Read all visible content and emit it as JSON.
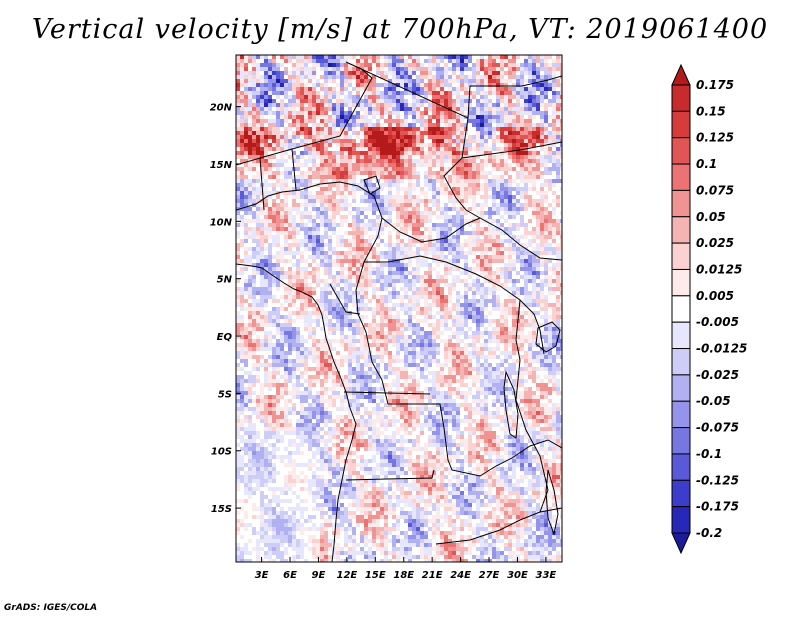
{
  "chart_data": {
    "type": "heatmap",
    "title": "Vertical velocity [m/s] at 700hPa, VT: 2019061400",
    "xlabel": "",
    "ylabel": "",
    "x_ticks": [
      "3E",
      "6E",
      "9E",
      "12E",
      "15E",
      "18E",
      "21E",
      "24E",
      "27E",
      "30E",
      "33E"
    ],
    "y_ticks": [
      "20N",
      "15N",
      "10N",
      "5N",
      "EQ",
      "5S",
      "10S",
      "15S"
    ],
    "x_tick_values": [
      3,
      6,
      9,
      12,
      15,
      18,
      21,
      24,
      27,
      30,
      33
    ],
    "y_tick_values": [
      20,
      15,
      10,
      5,
      0,
      -5,
      -10,
      -15
    ],
    "xlim": [
      0.3,
      34.7
    ],
    "ylim": [
      -19.7,
      24.5
    ],
    "colorbar": {
      "labels": [
        "0.175",
        "0.15",
        "0.125",
        "0.1",
        "0.075",
        "0.05",
        "0.025",
        "0.0125",
        "0.005",
        "-0.005",
        "-0.0125",
        "-0.025",
        "-0.05",
        "-0.075",
        "-0.1",
        "-0.125",
        "-0.175",
        "-0.2"
      ],
      "colors": [
        "#b41a1a",
        "#c82b2b",
        "#d73c3c",
        "#e25555",
        "#eb7373",
        "#f09393",
        "#f5b4b4",
        "#fad2d2",
        "#fdeaea",
        "#ffffff",
        "#e6e6fc",
        "#cdcdf8",
        "#b1b1f2",
        "#9494ea",
        "#7777e2",
        "#5a5ad8",
        "#3d3dcc",
        "#2828b8",
        "#1c1c9a"
      ]
    },
    "features": [
      "coastlines",
      "country borders",
      "Lake Victoria",
      "Lake Tanganyika",
      "Lake Malawi",
      "Lake Chad"
    ]
  },
  "footer": "GrADS: IGES/COLA"
}
